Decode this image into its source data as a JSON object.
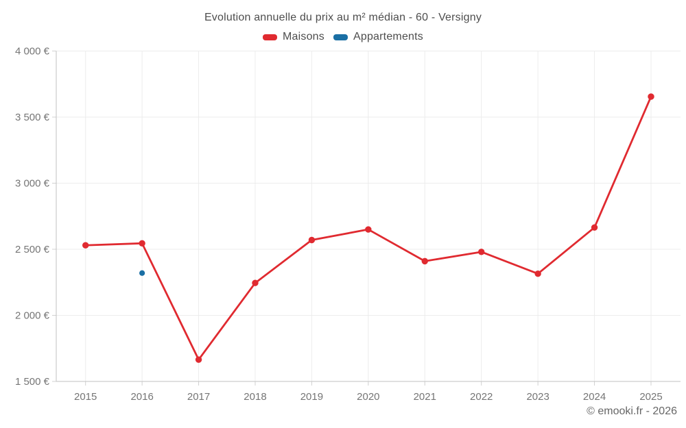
{
  "chart_data": {
    "type": "line",
    "title": "Evolution annuelle du prix au m² médian - 60 - Versigny",
    "x": [
      "2015",
      "2016",
      "2017",
      "2018",
      "2019",
      "2020",
      "2021",
      "2022",
      "2023",
      "2024",
      "2025"
    ],
    "xlabel": "",
    "ylabel": "",
    "ylim": [
      1500,
      4000
    ],
    "grid": true,
    "legend_position": "top",
    "y_ticks": [
      {
        "value": 4000,
        "label": "4 000 €"
      },
      {
        "value": 3500,
        "label": "3 500 €"
      },
      {
        "value": 3000,
        "label": "3 000 €"
      },
      {
        "value": 2500,
        "label": "2 500 €"
      },
      {
        "value": 2000,
        "label": "2 000 €"
      },
      {
        "value": 1500,
        "label": "1 500 €"
      }
    ],
    "series": [
      {
        "name": "Maisons",
        "color": "#e02a30",
        "values": [
          2530,
          2545,
          1665,
          2245,
          2570,
          2650,
          2410,
          2480,
          2315,
          2665,
          3655
        ]
      },
      {
        "name": "Appartements",
        "color": "#1a6fa4",
        "values": [
          null,
          2320,
          null,
          null,
          null,
          null,
          null,
          null,
          null,
          null,
          null
        ]
      }
    ]
  },
  "attribution": "© emooki.fr - 2026",
  "colors": {
    "background": "#ffffff",
    "grid": "#ececec",
    "axis": "#c2c2c2",
    "tick": "#d0d0d0",
    "tick_label": "#757575",
    "title": "#4d4d4d",
    "attribution": "#666666"
  }
}
